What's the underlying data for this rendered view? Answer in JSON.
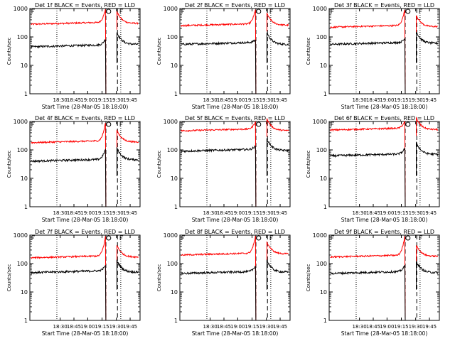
{
  "chart_data": [
    {
      "type": "line",
      "title": "Det 1f BLACK = Events, RED = LLD",
      "ylabel": "Counts/sec",
      "xlabel": "Start Time (28-Mar-05 18:18:00)",
      "x_ticks": [
        "18:30",
        "18:45",
        "19:00",
        "19:15",
        "19:30",
        "19:45"
      ],
      "y_ticks": [
        "1",
        "10",
        "100",
        "1000"
      ],
      "ylim": [
        1,
        1000
      ],
      "yscale": "log",
      "series": [
        {
          "color": "#ff0000",
          "base": 280,
          "rise": 1100,
          "post": 300
        },
        {
          "color": "#000000",
          "base": 45,
          "rise": 90,
          "post": 55
        }
      ]
    },
    {
      "type": "line",
      "title": "Det 2f BLACK = Events, RED = LLD",
      "ylabel": "Counts/sec",
      "xlabel": "Start Time (28-Mar-05 18:18:00)",
      "x_ticks": [
        "18:30",
        "18:45",
        "19:00",
        "19:15",
        "19:30",
        "19:45"
      ],
      "y_ticks": [
        "1",
        "10",
        "100",
        "1000"
      ],
      "ylim": [
        1,
        1000
      ],
      "yscale": "log",
      "series": [
        {
          "color": "#ff0000",
          "base": 250,
          "rise": 1100,
          "post": 260
        },
        {
          "color": "#000000",
          "base": 55,
          "rise": 80,
          "post": 55
        }
      ]
    },
    {
      "type": "line",
      "title": "Det 3f BLACK = Events, RED = LLD",
      "ylabel": "Counts/sec",
      "xlabel": "Start Time (28-Mar-05 18:18:00)",
      "x_ticks": [
        "18:30",
        "18:45",
        "19:00",
        "19:15",
        "19:30",
        "19:45"
      ],
      "y_ticks": [
        "1",
        "10",
        "100",
        "1000"
      ],
      "ylim": [
        1,
        1000
      ],
      "yscale": "log",
      "series": [
        {
          "color": "#ff0000",
          "base": 220,
          "rise": 1100,
          "post": 230
        },
        {
          "color": "#000000",
          "base": 55,
          "rise": 90,
          "post": 60
        }
      ]
    },
    {
      "type": "line",
      "title": "Det 4f BLACK = Events, RED = LLD",
      "ylabel": "Counts/sec",
      "xlabel": "Start Time (28-Mar-05 18:18:00)",
      "x_ticks": [
        "18:30",
        "18:45",
        "19:00",
        "19:15",
        "19:30",
        "19:45"
      ],
      "y_ticks": [
        "1",
        "10",
        "100",
        "1000"
      ],
      "ylim": [
        1,
        1000
      ],
      "yscale": "log",
      "series": [
        {
          "color": "#ff0000",
          "base": 180,
          "rise": 1100,
          "post": 190
        },
        {
          "color": "#000000",
          "base": 40,
          "rise": 120,
          "post": 45
        }
      ]
    },
    {
      "type": "line",
      "title": "Det 5f BLACK = Events, RED = LLD",
      "ylabel": "Counts/sec",
      "xlabel": "Start Time (28-Mar-05 18:18:00)",
      "x_ticks": [
        "18:30",
        "18:45",
        "19:00",
        "19:15",
        "19:30",
        "19:45"
      ],
      "y_ticks": [
        "1",
        "10",
        "100",
        "1000"
      ],
      "ylim": [
        1,
        1000
      ],
      "yscale": "log",
      "series": [
        {
          "color": "#ff0000",
          "base": 470,
          "rise": 1100,
          "post": 480
        },
        {
          "color": "#000000",
          "base": 90,
          "rise": 140,
          "post": 95
        }
      ]
    },
    {
      "type": "line",
      "title": "Det 6f BLACK = Events, RED = LLD",
      "ylabel": "Counts/sec",
      "xlabel": "Start Time (28-Mar-05 18:18:00)",
      "x_ticks": [
        "18:30",
        "18:45",
        "19:00",
        "19:15",
        "19:30",
        "19:45"
      ],
      "y_ticks": [
        "1",
        "10",
        "100",
        "1000"
      ],
      "ylim": [
        1,
        1000
      ],
      "yscale": "log",
      "series": [
        {
          "color": "#ff0000",
          "base": 500,
          "rise": 1100,
          "post": 520
        },
        {
          "color": "#000000",
          "base": 62,
          "rise": 120,
          "post": 70
        }
      ]
    },
    {
      "type": "line",
      "title": "Det 7f BLACK = Events, RED = LLD",
      "ylabel": "Counts/sec",
      "xlabel": "Start Time (28-Mar-05 18:18:00)",
      "x_ticks": [
        "18:30",
        "18:45",
        "19:00",
        "19:15",
        "19:30",
        "19:45"
      ],
      "y_ticks": [
        "1",
        "10",
        "100",
        "1000"
      ],
      "ylim": [
        1,
        1000
      ],
      "yscale": "log",
      "series": [
        {
          "color": "#ff0000",
          "base": 160,
          "rise": 1100,
          "post": 170
        },
        {
          "color": "#000000",
          "base": 48,
          "rise": 90,
          "post": 50
        }
      ]
    },
    {
      "type": "line",
      "title": "Det 8f BLACK = Events, RED = LLD",
      "ylabel": "Counts/sec",
      "xlabel": "Start Time (28-Mar-05 18:18:00)",
      "x_ticks": [
        "18:30",
        "18:45",
        "19:00",
        "19:15",
        "19:30",
        "19:45"
      ],
      "y_ticks": [
        "1",
        "10",
        "100",
        "1000"
      ],
      "ylim": [
        1,
        1000
      ],
      "yscale": "log",
      "series": [
        {
          "color": "#ff0000",
          "base": 200,
          "rise": 1100,
          "post": 220
        },
        {
          "color": "#000000",
          "base": 45,
          "rise": 90,
          "post": 50
        }
      ]
    },
    {
      "type": "line",
      "title": "Det 9f BLACK = Events, RED = LLD",
      "ylabel": "Counts/sec",
      "xlabel": "Start Time (28-Mar-05 18:18:00)",
      "x_ticks": [
        "18:30",
        "18:45",
        "19:00",
        "19:15",
        "19:30",
        "19:45"
      ],
      "y_ticks": [
        "1",
        "10",
        "100",
        "1000"
      ],
      "ylim": [
        1,
        1000
      ],
      "yscale": "log",
      "series": [
        {
          "color": "#ff0000",
          "base": 170,
          "rise": 1100,
          "post": 180
        },
        {
          "color": "#000000",
          "base": 45,
          "rise": 90,
          "post": 48
        }
      ]
    }
  ]
}
